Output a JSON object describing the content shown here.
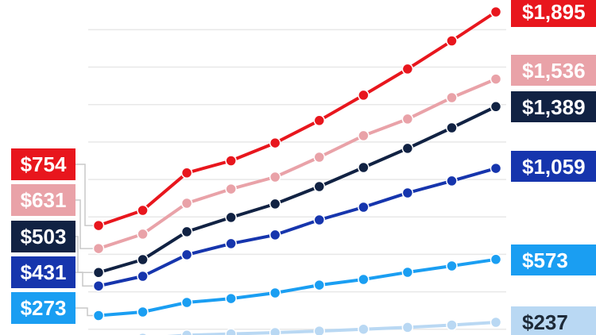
{
  "chart_data": {
    "type": "line",
    "title": "",
    "x_axis": {
      "labels_visible": false,
      "num_points": 10
    },
    "y_axis": {
      "labels_visible": false,
      "gridline_interval": 200,
      "gridlines": [
        200,
        400,
        600,
        800,
        1000,
        1200,
        1400,
        1600,
        1800
      ],
      "ylim": [
        170,
        1910
      ],
      "unit": "$"
    },
    "legend_position": "none",
    "grid": "horizontal-only",
    "series": [
      {
        "name": "red",
        "color": "#e8161d",
        "start_label": "$754",
        "end_label": "$1,895",
        "values": [
          754,
          835,
          1035,
          1100,
          1195,
          1315,
          1450,
          1590,
          1740,
          1895
        ]
      },
      {
        "name": "pink",
        "color": "#e9a2a8",
        "start_label": "$631",
        "end_label": "$1,536",
        "values": [
          631,
          708,
          873,
          949,
          1013,
          1119,
          1234,
          1323,
          1437,
          1536
        ]
      },
      {
        "name": "navy",
        "color": "#112243",
        "start_label": "$503",
        "end_label": "$1,389",
        "values": [
          503,
          572,
          721,
          797,
          869,
          962,
          1064,
          1166,
          1276,
          1389
        ]
      },
      {
        "name": "royal-blue",
        "color": "#1635ad",
        "start_label": "$431",
        "end_label": "$1,059",
        "values": [
          431,
          483,
          598,
          657,
          704,
          784,
          852,
          928,
          992,
          1059
        ]
      },
      {
        "name": "bright-blue",
        "color": "#1a9ef2",
        "start_label": "$273",
        "end_label": "$573",
        "values": [
          273,
          292,
          343,
          364,
          394,
          436,
          466,
          504,
          538,
          573
        ]
      },
      {
        "name": "pale-blue",
        "color": "#b9d8f3",
        "start_label": "",
        "end_label": "$237",
        "values": [
          145,
          152,
          168,
          175,
          182,
          190,
          200,
          210,
          222,
          237
        ]
      }
    ]
  },
  "labels": {
    "left": [
      {
        "text": "$754",
        "bg": "#e8161d",
        "fg": "#ffffff"
      },
      {
        "text": "$631",
        "bg": "#e9a2a8",
        "fg": "#ffffff"
      },
      {
        "text": "$503",
        "bg": "#112243",
        "fg": "#ffffff"
      },
      {
        "text": "$431",
        "bg": "#1635ad",
        "fg": "#ffffff"
      },
      {
        "text": "$273",
        "bg": "#1a9ef2",
        "fg": "#ffffff"
      }
    ],
    "right": [
      {
        "text": "$1,895",
        "bg": "#e8161d",
        "fg": "#ffffff"
      },
      {
        "text": "$1,536",
        "bg": "#e9a2a8",
        "fg": "#ffffff"
      },
      {
        "text": "$1,389",
        "bg": "#112243",
        "fg": "#ffffff"
      },
      {
        "text": "$1,059",
        "bg": "#1635ad",
        "fg": "#ffffff"
      },
      {
        "text": "$573",
        "bg": "#1a9ef2",
        "fg": "#ffffff"
      },
      {
        "text": "$237",
        "bg": "#b9d8f3",
        "fg": "#1e2a38"
      }
    ]
  },
  "style_colors": {
    "background": "#ffffff",
    "gridline": "#e8e8e8",
    "connector": "#c9c9c9",
    "marker_outline": "#ffffff"
  }
}
